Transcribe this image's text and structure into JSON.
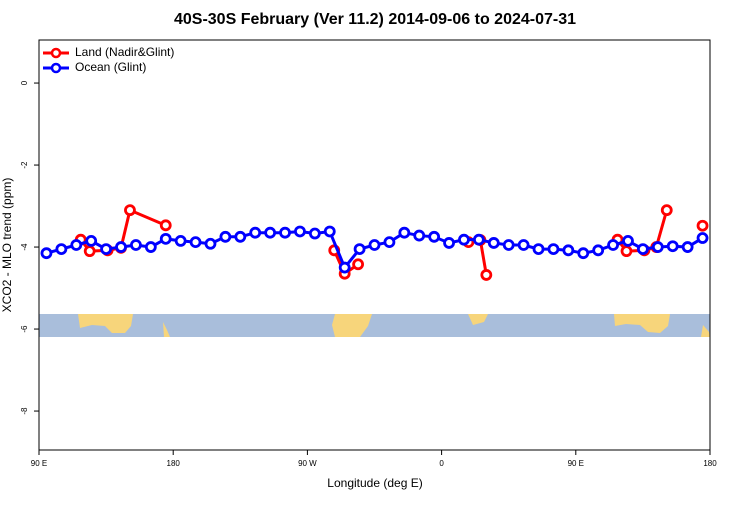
{
  "chart_data": {
    "type": "line",
    "title": "40S-30S February (Ver 11.2)   2014-09-06 to 2024-07-31",
    "xlabel": "Longitude (deg E)",
    "ylabel": "XCO2 - MLO trend (ppm)",
    "xlim": [
      90,
      540
    ],
    "xticks": [
      {
        "value": 90,
        "label": "90 E"
      },
      {
        "value": 180,
        "label": "180"
      },
      {
        "value": 270,
        "label": "90 W"
      },
      {
        "value": 360,
        "label": "0"
      },
      {
        "value": 450,
        "label": "90 E"
      },
      {
        "value": 540,
        "label": "180"
      }
    ],
    "ylim": [
      -8.95,
      1.05
    ],
    "yticks": [
      0,
      -2,
      -4,
      -6,
      -8
    ],
    "legend": "top-left",
    "series": [
      {
        "name": "Land (Nadir&Glint)",
        "color": "#ff0000",
        "x": [
          118,
          124,
          136,
          145,
          151,
          175,
          null,
          288,
          295,
          304,
          null,
          378,
          386,
          390,
          null,
          478,
          484,
          496,
          504,
          511,
          null,
          535
        ],
        "values": [
          -3.82,
          -4.1,
          -4.08,
          -4.02,
          -3.1,
          -3.47,
          null,
          -4.08,
          -4.65,
          -4.42,
          null,
          -3.88,
          -3.83,
          -4.68,
          null,
          -3.82,
          -4.1,
          -4.08,
          -4.0,
          -3.1,
          null,
          -3.48
        ]
      },
      {
        "name": "Ocean (Glint)",
        "color": "#0000ff",
        "x": [
          95,
          105,
          115,
          125,
          135,
          145,
          155,
          165,
          175,
          185,
          195,
          205,
          215,
          225,
          235,
          245,
          255,
          265,
          275,
          285,
          295,
          305,
          315,
          325,
          335,
          345,
          355,
          365,
          375,
          385,
          395,
          405,
          415,
          425,
          435,
          445,
          455,
          465,
          475,
          485,
          495,
          505,
          515,
          525,
          535
        ],
        "values": [
          -4.15,
          -4.05,
          -3.95,
          -3.85,
          -4.05,
          -4.0,
          -3.95,
          -4.0,
          -3.8,
          -3.85,
          -3.88,
          -3.92,
          -3.75,
          -3.75,
          -3.65,
          -3.65,
          -3.65,
          -3.62,
          -3.67,
          -3.62,
          -4.5,
          -4.05,
          -3.95,
          -3.88,
          -3.65,
          -3.72,
          -3.75,
          -3.9,
          -3.82,
          -3.82,
          -3.9,
          -3.95,
          -3.95,
          -4.05,
          -4.05,
          -4.08,
          -4.15,
          -4.08,
          -3.95,
          -3.85,
          -4.05,
          -4.0,
          -3.98,
          -4.0,
          -3.78
        ]
      }
    ]
  }
}
